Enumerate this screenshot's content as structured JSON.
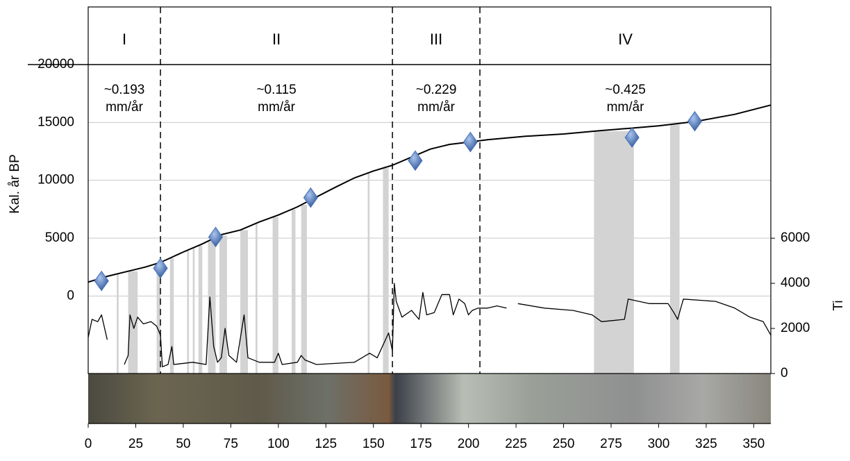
{
  "chart_data": {
    "type": "line",
    "y_label": "Kal. år BP",
    "y2_label": "Ti",
    "xlim": [
      0,
      359
    ],
    "xticks": [
      0,
      25,
      50,
      75,
      100,
      125,
      150,
      175,
      200,
      225,
      250,
      275,
      300,
      325,
      350
    ],
    "ylim": [
      -6700,
      20000
    ],
    "yticks": [
      0,
      5000,
      10000,
      15000,
      20000
    ],
    "y2lim": [
      0,
      13700
    ],
    "y2ticks": [
      0,
      2000,
      4000,
      6000
    ],
    "grid": true,
    "zone_boundaries": [
      38,
      160,
      206
    ],
    "zones": [
      {
        "label": "I",
        "rate": "~0.193",
        "unit": "mm/år"
      },
      {
        "label": "II",
        "rate": "~0.115",
        "unit": "mm/år"
      },
      {
        "label": "III",
        "rate": "~0.229",
        "unit": "mm/år"
      },
      {
        "label": "IV",
        "rate": "~0.425",
        "unit": "mm/år"
      }
    ],
    "shaded_intervals": [
      [
        15,
        16
      ],
      [
        21,
        26
      ],
      [
        36,
        38
      ],
      [
        43,
        45
      ],
      [
        52,
        53
      ],
      [
        55,
        56
      ],
      [
        58,
        60
      ],
      [
        63,
        67
      ],
      [
        69,
        73
      ],
      [
        80,
        84
      ],
      [
        88,
        89
      ],
      [
        97,
        100
      ],
      [
        107,
        109
      ],
      [
        112,
        115
      ],
      [
        147,
        148
      ],
      [
        155,
        158
      ],
      [
        266,
        287
      ],
      [
        306,
        311
      ]
    ],
    "shade_color": "#d3d3d3",
    "series": [
      {
        "color": "#000000",
        "axis": "y",
        "x": [
          0,
          10,
          20,
          30,
          38,
          50,
          60,
          70,
          80,
          90,
          100,
          110,
          117,
          130,
          140,
          150,
          160,
          170,
          180,
          190,
          200,
          210,
          230,
          250,
          270,
          285,
          300,
          320,
          340,
          359
        ],
        "values": [
          1200,
          1700,
          2100,
          2500,
          2900,
          3800,
          4500,
          5300,
          5700,
          6400,
          7000,
          7700,
          8300,
          9400,
          10200,
          10800,
          11300,
          12000,
          12700,
          13100,
          13300,
          13500,
          13800,
          14000,
          14300,
          14500,
          14700,
          15100,
          15700,
          16500
        ]
      },
      {
        "color": "#000000",
        "axis": "y2",
        "x": [
          0,
          2,
          5,
          7,
          10,
          13,
          19,
          21,
          22,
          24,
          26,
          29,
          33,
          36,
          38,
          39,
          42,
          44,
          45,
          55,
          62,
          64,
          66,
          68,
          70,
          72,
          74,
          78,
          82,
          84,
          90,
          98,
          100,
          102,
          110,
          112,
          114,
          120,
          140,
          148,
          152,
          158,
          160,
          161,
          162,
          165,
          170,
          174,
          176,
          178,
          182,
          186,
          190,
          192,
          195,
          198,
          200,
          202,
          205,
          210,
          215,
          220,
          222,
          226,
          240,
          255,
          265,
          270,
          282,
          284,
          295,
          305,
          308,
          310,
          313,
          330,
          340,
          348,
          355,
          359
        ],
        "values": [
          1600,
          2400,
          2300,
          2600,
          1500,
          null,
          400,
          800,
          2600,
          2000,
          2500,
          2200,
          2300,
          2100,
          1700,
          300,
          400,
          1200,
          400,
          500,
          400,
          3400,
          1200,
          500,
          700,
          2000,
          800,
          500,
          2600,
          700,
          500,
          500,
          900,
          400,
          500,
          800,
          600,
          400,
          500,
          900,
          700,
          1800,
          1000,
          4000,
          3200,
          2500,
          2800,
          2400,
          3600,
          2600,
          2700,
          3500,
          3500,
          2600,
          3300,
          3100,
          2600,
          2800,
          2900,
          2900,
          3000,
          2900,
          null,
          3100,
          2900,
          2800,
          2600,
          2300,
          2400,
          3300,
          3100,
          3100,
          2700,
          2400,
          3300,
          3200,
          2900,
          2500,
          2300,
          1700
        ]
      },
      {
        "type": "scatter",
        "color": "#4a74b8",
        "axis": "y",
        "x": [
          7,
          38,
          67,
          117,
          172,
          201,
          286,
          319
        ],
        "values": [
          1300,
          2400,
          5100,
          8500,
          11700,
          13300,
          13700,
          15100
        ]
      }
    ]
  }
}
